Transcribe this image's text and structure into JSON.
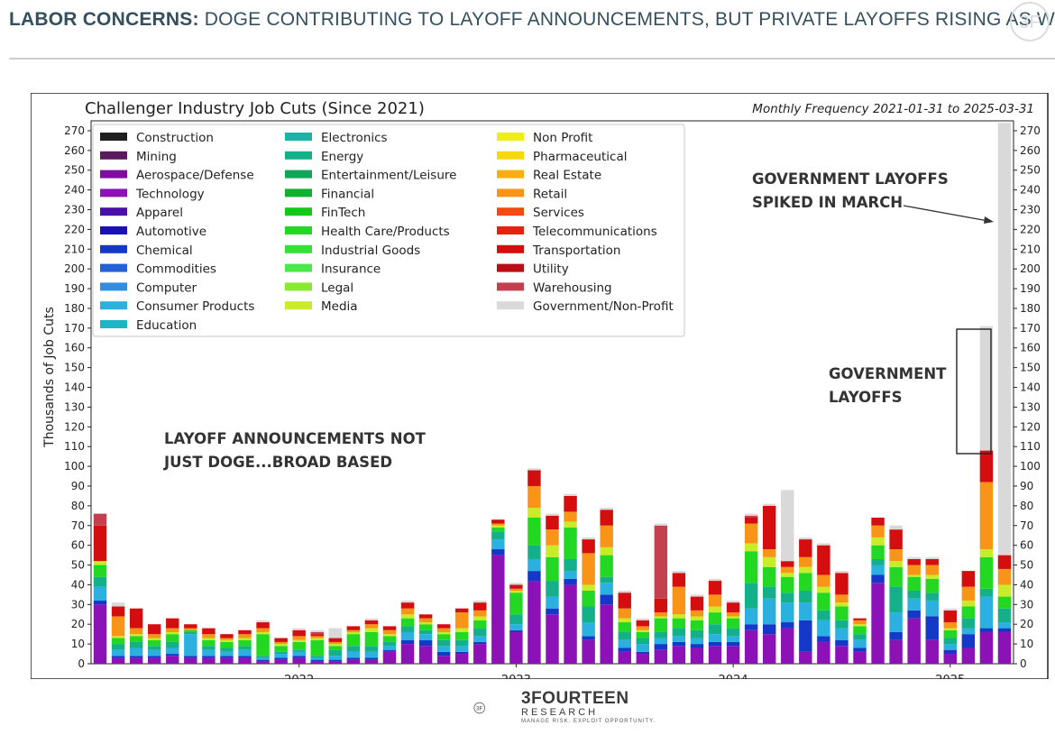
{
  "header": {
    "title_strong": "LABOR CONCERNS:",
    "title_rest": "DOGE CONTRIBUTING TO LAYOFF ANNOUNCEMENTS, BUT PRIVATE LAYOFFS RISING AS WELL"
  },
  "brand": {
    "name": "3FOURTEEN",
    "sub": "RESEARCH",
    "tagline": "MANAGE RISK. EXPLOIT OPPORTUNITY."
  },
  "chart_data": {
    "type": "bar",
    "stacked": true,
    "title": "Challenger Industry Job Cuts (Since 2021)",
    "subtitle": "Monthly Frequency 2021-01-31 to 2025-03-31",
    "ylabel": "Thousands of Job Cuts",
    "xlabel": "",
    "ylim": [
      0,
      275
    ],
    "yticks": [
      0,
      10,
      20,
      30,
      40,
      50,
      60,
      70,
      80,
      90,
      100,
      110,
      120,
      130,
      140,
      150,
      160,
      170,
      180,
      190,
      200,
      210,
      220,
      230,
      240,
      250,
      260,
      270
    ],
    "xtick_labels": [
      {
        "label": "2022",
        "index": 11.5
      },
      {
        "label": "2023",
        "index": 23.5
      },
      {
        "label": "2024",
        "index": 35.5
      },
      {
        "label": "2025",
        "index": 47.5
      }
    ],
    "legend_position": "top-left",
    "legend": [
      {
        "name": "Construction",
        "color": "#1f1f1f"
      },
      {
        "name": "Mining",
        "color": "#5a1a5e"
      },
      {
        "name": "Aerospace/Defense",
        "color": "#7e0f9e"
      },
      {
        "name": "Technology",
        "color": "#8c12b8"
      },
      {
        "name": "Apparel",
        "color": "#4a0fa8"
      },
      {
        "name": "Automotive",
        "color": "#1a10b8"
      },
      {
        "name": "Chemical",
        "color": "#1438c8"
      },
      {
        "name": "Commodities",
        "color": "#2460d6"
      },
      {
        "name": "Computer",
        "color": "#2f8ee0"
      },
      {
        "name": "Consumer Products",
        "color": "#2cb0e0"
      },
      {
        "name": "Education",
        "color": "#1cb6c2"
      },
      {
        "name": "Electronics",
        "color": "#18b4a8"
      },
      {
        "name": "Energy",
        "color": "#14b08a"
      },
      {
        "name": "Entertainment/Leisure",
        "color": "#12a45a"
      },
      {
        "name": "Financial",
        "color": "#10b030"
      },
      {
        "name": "FinTech",
        "color": "#14c818"
      },
      {
        "name": "Health Care/Products",
        "color": "#22d822"
      },
      {
        "name": "Industrial Goods",
        "color": "#36e036"
      },
      {
        "name": "Insurance",
        "color": "#4ae84a"
      },
      {
        "name": "Legal",
        "color": "#8ae82e"
      },
      {
        "name": "Media",
        "color": "#c8ec28"
      },
      {
        "name": "Non Profit",
        "color": "#eeee12"
      },
      {
        "name": "Pharmaceutical",
        "color": "#f6d80e"
      },
      {
        "name": "Real Estate",
        "color": "#f8b010"
      },
      {
        "name": "Retail",
        "color": "#f89418"
      },
      {
        "name": "Services",
        "color": "#f24a10"
      },
      {
        "name": "Telecommunications",
        "color": "#e82010"
      },
      {
        "name": "Transportation",
        "color": "#d40e0e"
      },
      {
        "name": "Utility",
        "color": "#b80e14"
      },
      {
        "name": "Warehousing",
        "color": "#c4404e"
      },
      {
        "name": "Government/Non-Profit",
        "color": "#d9d9d9"
      }
    ],
    "band_colors": [
      "#8c12b8",
      "#1438c8",
      "#2cb0e0",
      "#14b08a",
      "#22d822",
      "#c8ec28",
      "#f89418",
      "#d40e0e",
      "#c4404e",
      "#d9d9d9"
    ],
    "band_names": [
      "Aerospace/Defense & Technology",
      "Apparel, Automotive, Chemical, Commodities",
      "Computer, Consumer Products, Education, Electronics",
      "Energy, Entertainment/Leisure, Financial",
      "FinTech, Health Care, Industrial Goods, Insurance",
      "Legal, Media, Non Profit",
      "Pharmaceutical, Real Estate, Retail",
      "Services, Telecommunications, Transportation, Utility",
      "Warehousing",
      "Government/Non-Profit"
    ],
    "months": [
      {
        "date": "2021-01",
        "values": [
          30,
          2,
          7,
          5,
          6,
          2,
          0,
          18,
          6,
          0
        ]
      },
      {
        "date": "2021-02",
        "values": [
          3,
          1,
          3,
          3,
          3,
          1,
          10,
          5,
          0,
          2
        ]
      },
      {
        "date": "2021-03",
        "values": [
          3,
          1,
          4,
          3,
          3,
          1,
          3,
          10,
          0,
          0
        ]
      },
      {
        "date": "2021-04",
        "values": [
          3,
          1,
          3,
          2,
          3,
          1,
          2,
          5,
          0,
          0
        ]
      },
      {
        "date": "2021-05",
        "values": [
          4,
          1,
          3,
          3,
          4,
          1,
          2,
          5,
          0,
          0
        ]
      },
      {
        "date": "2021-06",
        "values": [
          3,
          1,
          11,
          1,
          1,
          0,
          1,
          2,
          0,
          0
        ]
      },
      {
        "date": "2021-07",
        "values": [
          3,
          1,
          3,
          2,
          3,
          1,
          2,
          3,
          0,
          0
        ]
      },
      {
        "date": "2021-08",
        "values": [
          3,
          1,
          2,
          2,
          3,
          1,
          1,
          2,
          0,
          0
        ]
      },
      {
        "date": "2021-09",
        "values": [
          3,
          1,
          3,
          2,
          3,
          1,
          2,
          2,
          0,
          0
        ]
      },
      {
        "date": "2021-10",
        "values": [
          1,
          1,
          1,
          1,
          11,
          1,
          2,
          3,
          0,
          1
        ]
      },
      {
        "date": "2021-11",
        "values": [
          2,
          1,
          2,
          1,
          3,
          1,
          1,
          2,
          0,
          0
        ]
      },
      {
        "date": "2021-12",
        "values": [
          3,
          1,
          2,
          1,
          4,
          1,
          2,
          3,
          0,
          1
        ]
      },
      {
        "date": "2022-01",
        "values": [
          1,
          1,
          1,
          1,
          8,
          1,
          1,
          1,
          1,
          1
        ]
      },
      {
        "date": "2022-02",
        "values": [
          1,
          1,
          2,
          3,
          2,
          1,
          1,
          2,
          0,
          5
        ]
      },
      {
        "date": "2022-03",
        "values": [
          2,
          1,
          3,
          3,
          6,
          1,
          1,
          2,
          0,
          0
        ]
      },
      {
        "date": "2022-04",
        "values": [
          2,
          1,
          3,
          3,
          7,
          2,
          2,
          2,
          0,
          1
        ]
      },
      {
        "date": "2022-05",
        "values": [
          6,
          1,
          2,
          2,
          3,
          1,
          2,
          2,
          0,
          0
        ]
      },
      {
        "date": "2022-06",
        "values": [
          10,
          2,
          4,
          3,
          4,
          2,
          3,
          3,
          0,
          1
        ]
      },
      {
        "date": "2022-07",
        "values": [
          9,
          3,
          3,
          2,
          3,
          1,
          2,
          2,
          0,
          0
        ]
      },
      {
        "date": "2022-08",
        "values": [
          4,
          2,
          3,
          3,
          3,
          1,
          2,
          2,
          0,
          0
        ]
      },
      {
        "date": "2022-09",
        "values": [
          5,
          1,
          3,
          3,
          4,
          2,
          8,
          2,
          0,
          0
        ]
      },
      {
        "date": "2022-10",
        "values": [
          10,
          1,
          3,
          4,
          4,
          2,
          3,
          4,
          0,
          1
        ]
      },
      {
        "date": "2022-11",
        "values": [
          55,
          3,
          5,
          4,
          2,
          1,
          1,
          2,
          0,
          0
        ]
      },
      {
        "date": "2022-12",
        "values": [
          16,
          1,
          3,
          5,
          11,
          1,
          1,
          2,
          0,
          1
        ]
      },
      {
        "date": "2023-01",
        "values": [
          42,
          5,
          6,
          7,
          14,
          5,
          11,
          8,
          0,
          1
        ]
      },
      {
        "date": "2023-02",
        "values": [
          25,
          3,
          6,
          8,
          12,
          6,
          8,
          7,
          0,
          1
        ]
      },
      {
        "date": "2023-03",
        "values": [
          40,
          3,
          4,
          6,
          16,
          3,
          5,
          8,
          0,
          1
        ]
      },
      {
        "date": "2023-04",
        "values": [
          12,
          2,
          7,
          8,
          8,
          3,
          16,
          7,
          0,
          1
        ]
      },
      {
        "date": "2023-05",
        "values": [
          30,
          5,
          6,
          3,
          11,
          4,
          11,
          8,
          0,
          1
        ]
      },
      {
        "date": "2023-06",
        "values": [
          6,
          2,
          4,
          4,
          5,
          2,
          5,
          8,
          0,
          1
        ]
      },
      {
        "date": "2023-07",
        "values": [
          5,
          1,
          4,
          3,
          3,
          1,
          2,
          3,
          0,
          1
        ]
      },
      {
        "date": "2023-08",
        "values": [
          7,
          3,
          3,
          3,
          7,
          1,
          2,
          7,
          37,
          1
        ]
      },
      {
        "date": "2023-09",
        "values": [
          9,
          2,
          3,
          4,
          5,
          2,
          14,
          7,
          0,
          1
        ]
      },
      {
        "date": "2023-10",
        "values": [
          8,
          2,
          3,
          4,
          5,
          2,
          3,
          7,
          0,
          1
        ]
      },
      {
        "date": "2023-11",
        "values": [
          9,
          2,
          4,
          5,
          6,
          3,
          6,
          7,
          0,
          1
        ]
      },
      {
        "date": "2023-12",
        "values": [
          9,
          2,
          3,
          4,
          5,
          1,
          2,
          5,
          0,
          1
        ]
      },
      {
        "date": "2024-01",
        "values": [
          17,
          3,
          8,
          13,
          16,
          4,
          10,
          3,
          1,
          1
        ]
      },
      {
        "date": "2024-02",
        "values": [
          15,
          5,
          13,
          6,
          10,
          5,
          4,
          22,
          0,
          1
        ]
      },
      {
        "date": "2024-03",
        "values": [
          18,
          3,
          10,
          5,
          8,
          2,
          3,
          3,
          0,
          36
        ]
      },
      {
        "date": "2024-04",
        "values": [
          6,
          16,
          9,
          6,
          9,
          3,
          5,
          9,
          0,
          1
        ]
      },
      {
        "date": "2024-05",
        "values": [
          11,
          3,
          8,
          5,
          9,
          3,
          6,
          15,
          0,
          1
        ]
      },
      {
        "date": "2024-06",
        "values": [
          9,
          3,
          6,
          4,
          7,
          2,
          4,
          11,
          0,
          1
        ]
      },
      {
        "date": "2024-07",
        "values": [
          6,
          2,
          4,
          3,
          4,
          1,
          2,
          1,
          0,
          0
        ]
      },
      {
        "date": "2024-08",
        "values": [
          41,
          4,
          5,
          3,
          7,
          4,
          6,
          4,
          0,
          0
        ]
      },
      {
        "date": "2024-09",
        "values": [
          12,
          4,
          10,
          13,
          10,
          3,
          6,
          10,
          0,
          2
        ]
      },
      {
        "date": "2024-10",
        "values": [
          23,
          4,
          6,
          4,
          7,
          1,
          5,
          3,
          0,
          1
        ]
      },
      {
        "date": "2024-11",
        "values": [
          12,
          12,
          8,
          4,
          7,
          2,
          5,
          3,
          0,
          1
        ]
      },
      {
        "date": "2024-12",
        "values": [
          5,
          2,
          3,
          3,
          4,
          1,
          3,
          6,
          0,
          1
        ]
      },
      {
        "date": "2025-01",
        "values": [
          8,
          7,
          3,
          5,
          6,
          3,
          7,
          8,
          0,
          0
        ]
      },
      {
        "date": "2025-02",
        "values": [
          16,
          2,
          16,
          4,
          16,
          4,
          34,
          16,
          0,
          63
        ]
      },
      {
        "date": "2025-03",
        "values": [
          16,
          2,
          3,
          7,
          6,
          6,
          8,
          7,
          0,
          219
        ]
      }
    ],
    "annotations": [
      {
        "text": "GOVERNMENT LAYOFFS",
        "text2": "SPIKED IN MARCH"
      },
      {
        "text": "GOVERNMENT",
        "text2": "LAYOFFS"
      },
      {
        "text": "LAYOFF ANNOUNCEMENTS NOT",
        "text2": "JUST DOGE...BROAD BASED"
      }
    ]
  }
}
